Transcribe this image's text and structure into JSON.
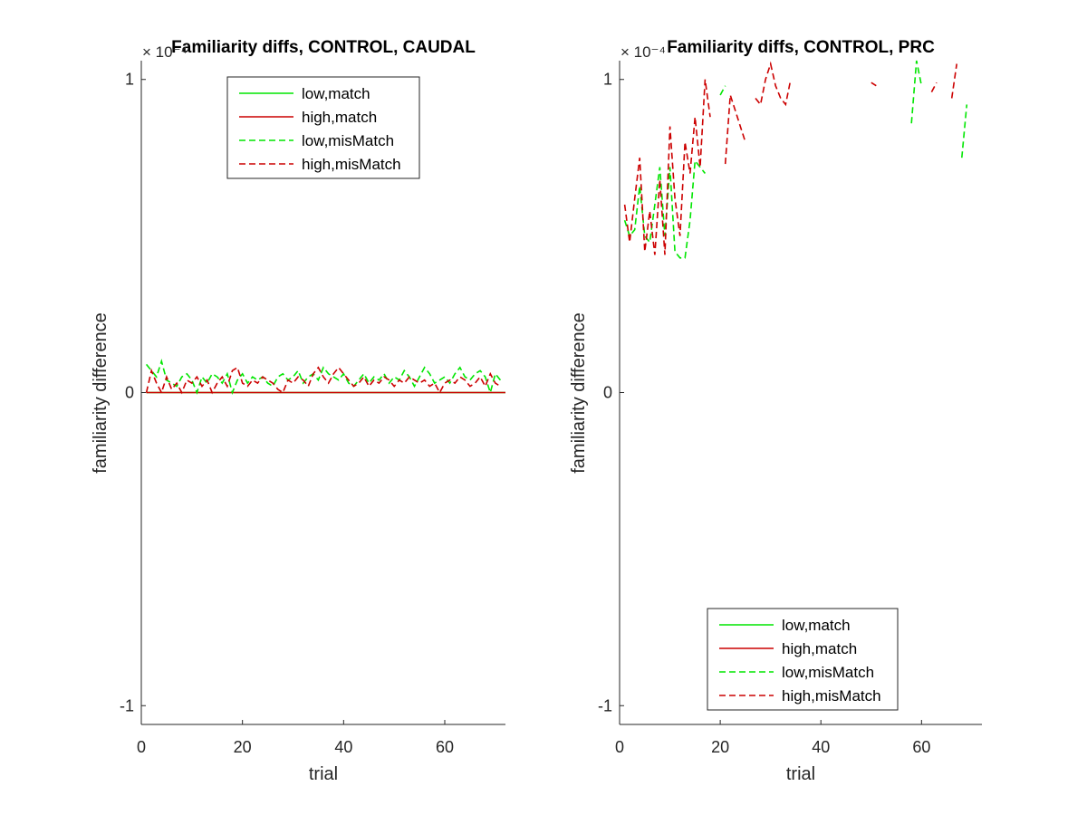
{
  "chart_data": [
    {
      "type": "line",
      "title": "Familiarity diffs, CONTROL, CAUDAL",
      "xlabel": "trial",
      "ylabel": "familiarity difference",
      "y_multiplier": "× 10⁻⁴",
      "xlim": [
        0,
        72
      ],
      "ylim": [
        -1.06,
        1.06
      ],
      "xticks": [
        0,
        20,
        40,
        60
      ],
      "yticks": [
        -1,
        0,
        1
      ],
      "ytick_labels": [
        "-1",
        "0",
        "1"
      ],
      "legend_position": "top-center",
      "series": [
        {
          "name": "low,match",
          "color": "#00e600",
          "dash": "solid",
          "x": [
            1,
            72
          ],
          "y": [
            0,
            0
          ]
        },
        {
          "name": "high,match",
          "color": "#cc0000",
          "dash": "solid",
          "x": [
            1,
            72
          ],
          "y": [
            0,
            0
          ]
        },
        {
          "name": "low,misMatch",
          "color": "#00e600",
          "dash": "dashed",
          "x": [
            1,
            2,
            3,
            4,
            5,
            6,
            7,
            8,
            9,
            10,
            11,
            12,
            13,
            14,
            15,
            16,
            17,
            18,
            19,
            20,
            21,
            22,
            23,
            24,
            25,
            26,
            27,
            28,
            29,
            30,
            31,
            32,
            33,
            34,
            35,
            36,
            37,
            38,
            39,
            40,
            41,
            42,
            43,
            44,
            45,
            46,
            47,
            48,
            49,
            50,
            51,
            52,
            53,
            54,
            55,
            56,
            57,
            58,
            59,
            60,
            61,
            62,
            63,
            64,
            65,
            66,
            67,
            68,
            69,
            70,
            71
          ],
          "y": [
            0.09,
            0.07,
            0.05,
            0.1,
            0.04,
            0.03,
            0.02,
            0.05,
            0.06,
            0.04,
            0.0,
            0.05,
            0.03,
            0.06,
            0.05,
            0.03,
            0.06,
            0.0,
            0.04,
            0.06,
            0.03,
            0.05,
            0.04,
            0.05,
            0.03,
            0.02,
            0.05,
            0.06,
            0.04,
            0.05,
            0.07,
            0.03,
            0.05,
            0.06,
            0.04,
            0.08,
            0.06,
            0.05,
            0.04,
            0.06,
            0.03,
            0.02,
            0.04,
            0.06,
            0.03,
            0.05,
            0.04,
            0.06,
            0.03,
            0.05,
            0.04,
            0.07,
            0.05,
            0.02,
            0.05,
            0.08,
            0.06,
            0.03,
            0.04,
            0.05,
            0.03,
            0.06,
            0.08,
            0.05,
            0.04,
            0.06,
            0.07,
            0.05,
            0.0,
            0.06,
            0.04
          ]
        },
        {
          "name": "high,misMatch",
          "color": "#cc0000",
          "dash": "dashed",
          "x": [
            1,
            2,
            3,
            4,
            5,
            6,
            7,
            8,
            9,
            10,
            11,
            12,
            13,
            14,
            15,
            16,
            17,
            18,
            19,
            20,
            21,
            22,
            23,
            24,
            25,
            26,
            27,
            28,
            29,
            30,
            31,
            32,
            33,
            34,
            35,
            36,
            37,
            38,
            39,
            40,
            41,
            42,
            43,
            44,
            45,
            46,
            47,
            48,
            49,
            50,
            51,
            52,
            53,
            54,
            55,
            56,
            57,
            58,
            59,
            60,
            61,
            62,
            63,
            64,
            65,
            66,
            67,
            68,
            69,
            70,
            71
          ],
          "y": [
            0.0,
            0.07,
            0.03,
            0.0,
            0.05,
            0.01,
            0.03,
            0.0,
            0.04,
            0.03,
            0.05,
            0.02,
            0.04,
            0.0,
            0.03,
            0.05,
            0.02,
            0.07,
            0.08,
            0.03,
            0.02,
            0.04,
            0.03,
            0.05,
            0.04,
            0.03,
            0.01,
            0.0,
            0.04,
            0.03,
            0.05,
            0.04,
            0.02,
            0.06,
            0.08,
            0.05,
            0.03,
            0.06,
            0.08,
            0.06,
            0.04,
            0.02,
            0.03,
            0.05,
            0.02,
            0.04,
            0.03,
            0.05,
            0.04,
            0.02,
            0.04,
            0.03,
            0.05,
            0.04,
            0.03,
            0.04,
            0.02,
            0.03,
            0.0,
            0.03,
            0.04,
            0.03,
            0.05,
            0.04,
            0.02,
            0.03,
            0.05,
            0.02,
            0.06,
            0.03,
            0.02
          ]
        }
      ]
    },
    {
      "type": "line",
      "title": "Familiarity diffs, CONTROL, PRC",
      "xlabel": "trial",
      "ylabel": "familiarity difference",
      "y_multiplier": "× 10⁻⁴",
      "xlim": [
        0,
        72
      ],
      "ylim": [
        -1.06,
        1.06
      ],
      "xticks": [
        0,
        20,
        40,
        60
      ],
      "yticks": [
        -1,
        0,
        1
      ],
      "ytick_labels": [
        "-1",
        "0",
        "1"
      ],
      "legend_position": "bottom-center",
      "series": [
        {
          "name": "low,match",
          "color": "#00e600",
          "dash": "solid",
          "x": [],
          "y": []
        },
        {
          "name": "high,match",
          "color": "#cc0000",
          "dash": "solid",
          "x": [],
          "y": []
        },
        {
          "name": "low,misMatch",
          "color": "#00e600",
          "dash": "dashed",
          "x": [
            1,
            2,
            3,
            4,
            5,
            6,
            7,
            8,
            9,
            10,
            11,
            12,
            13,
            14,
            15,
            16,
            17,
            null,
            20,
            21,
            null,
            58,
            59,
            60,
            null,
            68,
            69
          ],
          "y": [
            0.55,
            0.5,
            0.52,
            0.66,
            0.5,
            0.48,
            0.6,
            0.72,
            0.5,
            0.72,
            0.45,
            0.43,
            0.43,
            0.55,
            0.74,
            0.72,
            0.7,
            null,
            0.95,
            0.98,
            null,
            0.86,
            1.06,
            0.98,
            null,
            0.75,
            0.92
          ]
        },
        {
          "name": "high,misMatch",
          "color": "#cc0000",
          "dash": "dashed",
          "x": [
            1,
            2,
            3,
            4,
            5,
            6,
            7,
            8,
            9,
            10,
            11,
            12,
            13,
            14,
            15,
            16,
            17,
            18,
            null,
            21,
            22,
            23,
            24,
            25,
            null,
            27,
            28,
            29,
            30,
            31,
            32,
            33,
            34,
            null,
            50,
            51,
            null,
            62,
            63,
            null,
            66,
            67
          ],
          "y": [
            0.6,
            0.48,
            0.62,
            0.75,
            0.45,
            0.58,
            0.44,
            0.68,
            0.44,
            0.85,
            0.62,
            0.5,
            0.8,
            0.7,
            0.88,
            0.72,
            1.0,
            0.88,
            null,
            0.73,
            0.95,
            0.9,
            0.85,
            0.8,
            null,
            0.94,
            0.92,
            1.0,
            1.05,
            0.98,
            0.94,
            0.92,
            1.0,
            null,
            0.99,
            0.98,
            null,
            0.96,
            0.99,
            null,
            0.94,
            1.05
          ]
        }
      ]
    }
  ]
}
